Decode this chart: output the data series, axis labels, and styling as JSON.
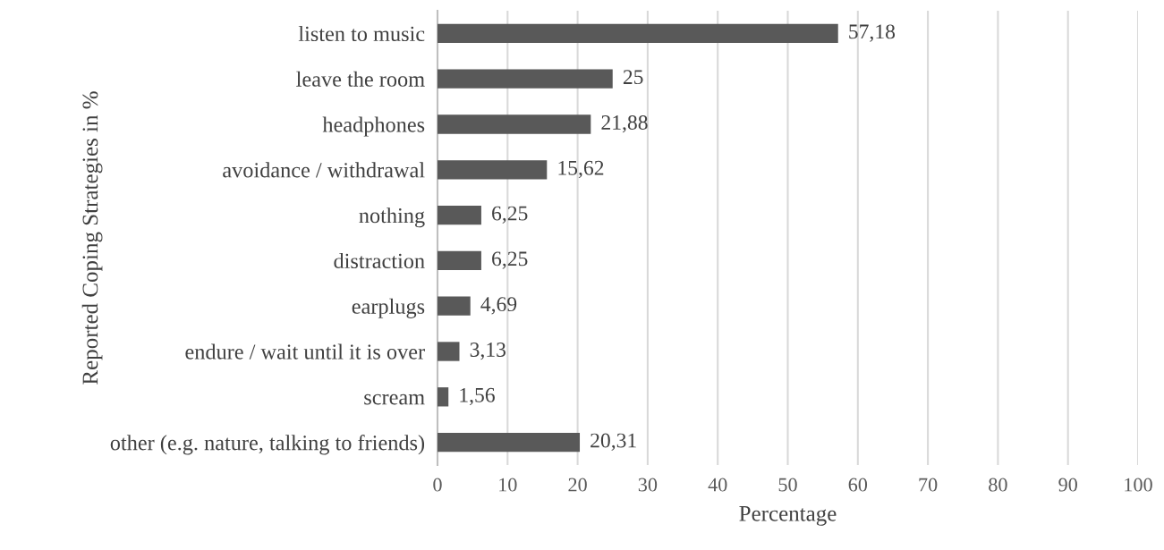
{
  "chart_data": {
    "type": "bar",
    "orientation": "horizontal",
    "xlabel": "Percentage",
    "ylabel": "Reported Coping Strategies in %",
    "categories": [
      "listen to music",
      "leave the room",
      "headphones",
      "avoidance / withdrawal",
      "nothing",
      "distraction",
      "earplugs",
      "endure / wait until it is over",
      "scream",
      "other (e.g. nature, talking to friends)"
    ],
    "values": [
      57.18,
      25,
      21.88,
      15.62,
      6.25,
      6.25,
      4.69,
      3.13,
      1.56,
      20.31
    ],
    "value_labels": [
      "57,18",
      "25",
      "21,88",
      "15,62",
      "6,25",
      "6,25",
      "4,69",
      "3,13",
      "1,56",
      "20,31"
    ],
    "color": "#595959",
    "xlim": [
      0,
      100
    ],
    "xticks": [
      0,
      10,
      20,
      30,
      40,
      50,
      60,
      70,
      80,
      90,
      100
    ],
    "grid": "x"
  }
}
